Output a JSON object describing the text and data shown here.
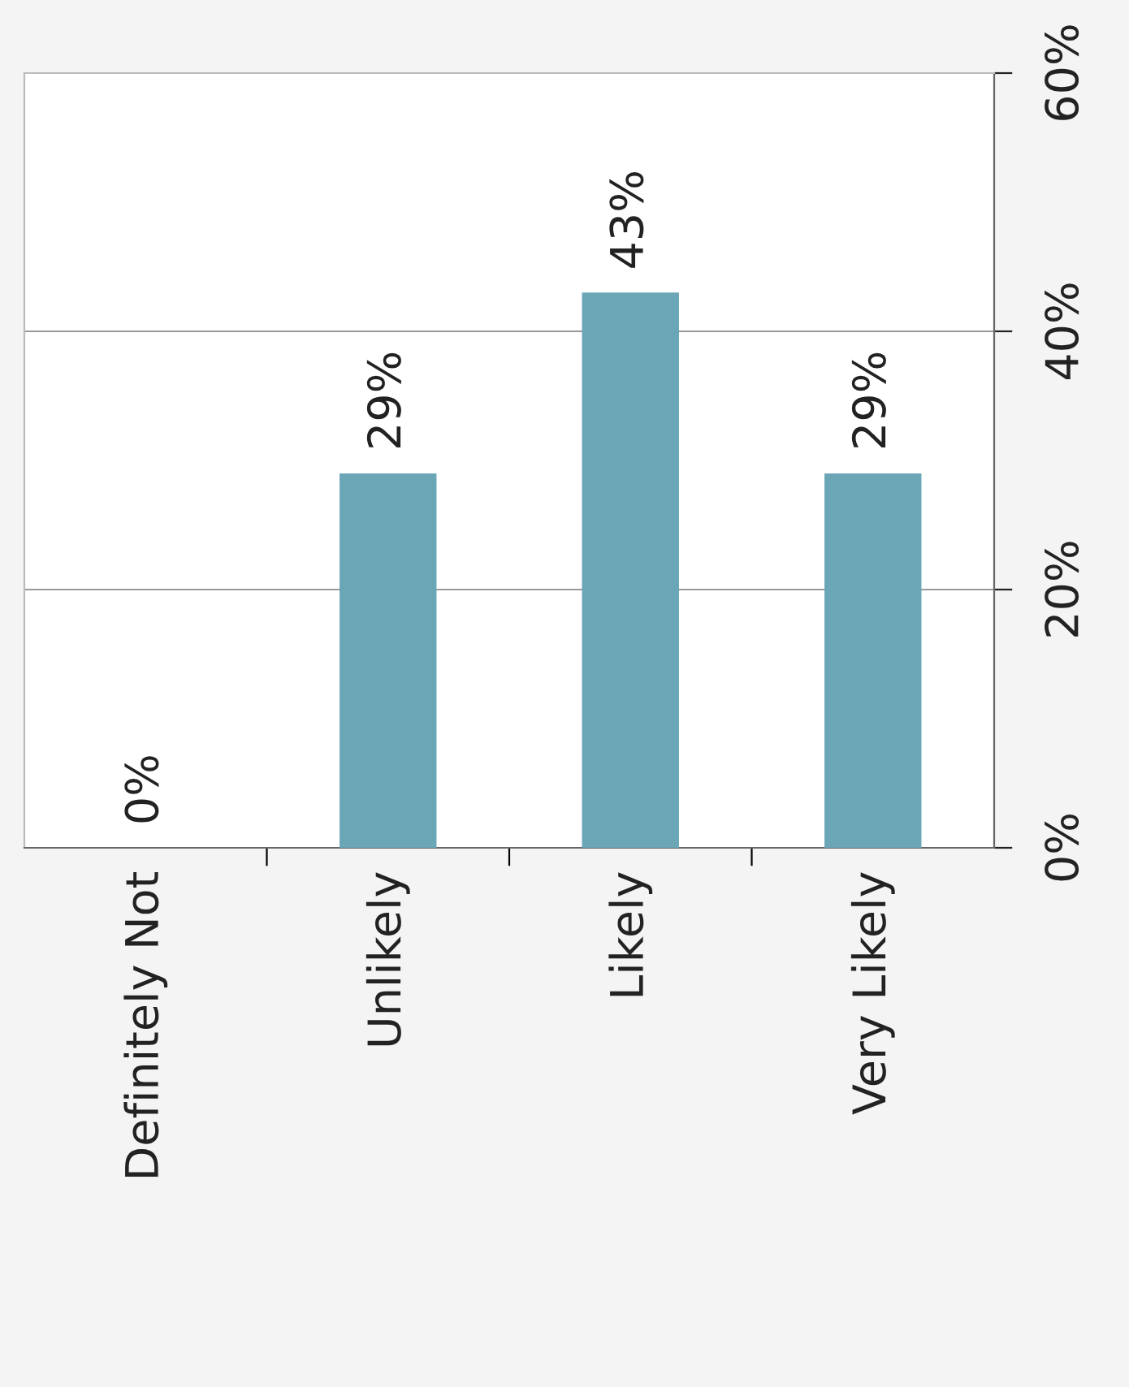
{
  "chart_data": {
    "type": "bar",
    "categories": [
      "Definitely Not",
      "Unlikely",
      "Likely",
      "Very Likely"
    ],
    "values": [
      0,
      29,
      43,
      29
    ],
    "value_labels": [
      "0%",
      "29%",
      "43%",
      "29%"
    ],
    "color": "#6aa6b6",
    "ylim": [
      0,
      60
    ],
    "yticks": [
      {
        "value": 0,
        "label": "0%"
      },
      {
        "value": 20,
        "label": "20%"
      },
      {
        "value": 40,
        "label": "40%"
      },
      {
        "value": 60,
        "label": "60%"
      }
    ],
    "grid": "y",
    "legend": false
  }
}
